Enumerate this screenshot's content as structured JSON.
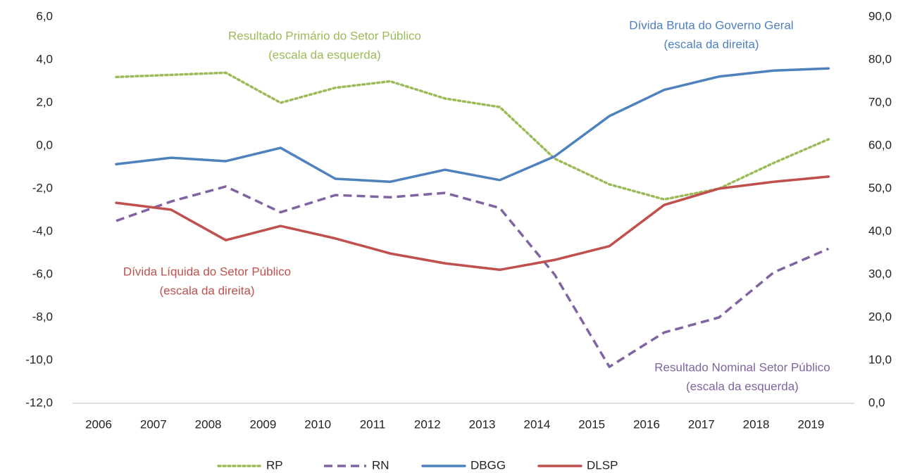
{
  "chart_data": {
    "type": "line",
    "categories": [
      "2006",
      "2007",
      "2008",
      "2009",
      "2010",
      "2011",
      "2012",
      "2013",
      "2014",
      "2015",
      "2016",
      "2017",
      "2018",
      "2019"
    ],
    "series": [
      {
        "name": "RP",
        "color": "#9bbb59",
        "dash": "dotted",
        "values": [
          3.2,
          3.3,
          3.4,
          2.0,
          2.7,
          3.0,
          2.2,
          1.8,
          -0.6,
          -1.8,
          -2.5,
          -2.0,
          -0.8,
          0.3
        ]
      },
      {
        "name": "RN",
        "color": "#8064a2",
        "dash": "dashed",
        "values": [
          -3.5,
          -2.6,
          -1.9,
          -3.1,
          -2.3,
          -2.4,
          -2.2,
          -2.9,
          -6.0,
          -10.3,
          -8.7,
          -8.0,
          -5.9,
          -4.8
        ]
      },
      {
        "name": "DBGG",
        "color": "#4f81bd",
        "dash": "solid",
        "axis": "y2",
        "values": [
          55.7,
          57.2,
          56.4,
          59.5,
          52.3,
          51.6,
          54.4,
          52.0,
          57.5,
          66.9,
          73.0,
          76.1,
          77.5,
          78.0
        ]
      },
      {
        "name": "DLSP",
        "color": "#c0504d",
        "dash": "solid",
        "axis": "y2",
        "values": [
          46.7,
          45.1,
          38.0,
          41.3,
          38.4,
          34.9,
          32.6,
          31.1,
          33.4,
          36.6,
          46.2,
          50.0,
          51.6,
          52.8
        ]
      }
    ],
    "annotations": [
      {
        "lines": [
          "Resultado Primário do Setor Público",
          "(escala da esquerda)"
        ]
      },
      {
        "lines": [
          "Resultado Nominal Setor Público",
          "(escala da esquerda)"
        ]
      },
      {
        "lines": [
          "Dívida Bruta do Governo Geral",
          "(escala da direita)"
        ]
      },
      {
        "lines": [
          "Dívida Líquida do Setor Público",
          "(escala da direita)"
        ]
      }
    ],
    "ylim": [
      -12,
      6
    ],
    "yticks": [
      {
        "value": -12,
        "label": "-12,0"
      },
      {
        "value": -10,
        "label": "-10,0"
      },
      {
        "value": -8,
        "label": "-8,0"
      },
      {
        "value": -6,
        "label": "-6,0"
      },
      {
        "value": -4,
        "label": "-4,0"
      },
      {
        "value": -2,
        "label": "-2,0"
      },
      {
        "value": 0,
        "label": "0,0"
      },
      {
        "value": 2,
        "label": "2,0"
      },
      {
        "value": 4,
        "label": "4,0"
      },
      {
        "value": 6,
        "label": "6,0"
      }
    ],
    "y2lim": [
      0,
      90
    ],
    "y2ticks": [
      {
        "value": 0,
        "label": "0,0"
      },
      {
        "value": 10,
        "label": "10,0"
      },
      {
        "value": 20,
        "label": "20,0"
      },
      {
        "value": 30,
        "label": "30,0"
      },
      {
        "value": 40,
        "label": "40,0"
      },
      {
        "value": 50,
        "label": "50,0"
      },
      {
        "value": 60,
        "label": "60,0"
      },
      {
        "value": 70,
        "label": "70,0"
      },
      {
        "value": 80,
        "label": "80,0"
      },
      {
        "value": 90,
        "label": "90,0"
      }
    ],
    "legend": "bottom"
  }
}
